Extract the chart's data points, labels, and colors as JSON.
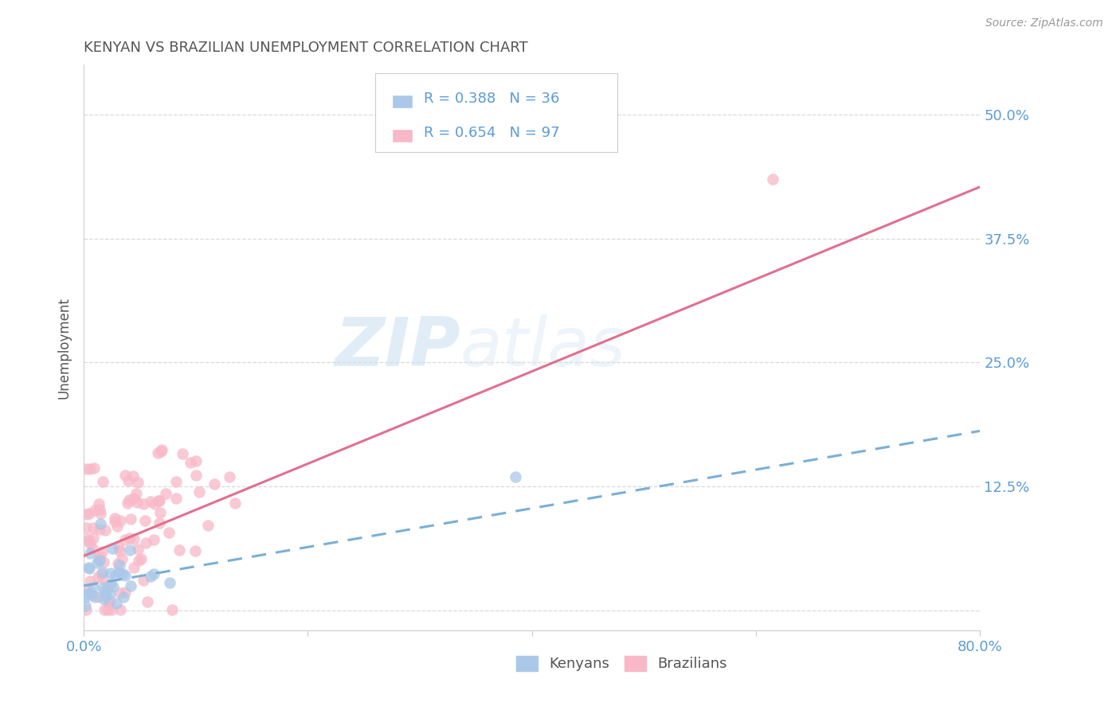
{
  "title": "KENYAN VS BRAZILIAN UNEMPLOYMENT CORRELATION CHART",
  "source": "Source: ZipAtlas.com",
  "ylabel": "Unemployment",
  "xlim": [
    0.0,
    0.8
  ],
  "ylim": [
    -0.02,
    0.55
  ],
  "yticks": [
    0.0,
    0.125,
    0.25,
    0.375,
    0.5
  ],
  "ytick_labels": [
    "",
    "12.5%",
    "25.0%",
    "37.5%",
    "50.0%"
  ],
  "xticks": [
    0.0,
    0.2,
    0.4,
    0.6,
    0.8
  ],
  "xtick_labels": [
    "0.0%",
    "",
    "",
    "",
    "80.0%"
  ],
  "kenyan_color": "#aac8e8",
  "kenyan_line_color": "#7bafd4",
  "brazilian_color": "#f8b8c8",
  "brazilian_line_color": "#e07090",
  "title_color": "#555555",
  "tick_label_color": "#5b9bd5",
  "watermark_text": "ZIP",
  "watermark_text2": "atlas",
  "kenyan_slope": 0.195,
  "kenyan_intercept": 0.025,
  "brazilian_slope": 0.465,
  "brazilian_intercept": 0.055,
  "background_color": "#ffffff",
  "grid_color": "#d0d0d0",
  "legend_kenyan": "R = 0.388   N = 36",
  "legend_brazilian": "R = 0.654   N = 97",
  "bottom_legend_kenyan": "Kenyans",
  "bottom_legend_brazilian": "Brazilians"
}
